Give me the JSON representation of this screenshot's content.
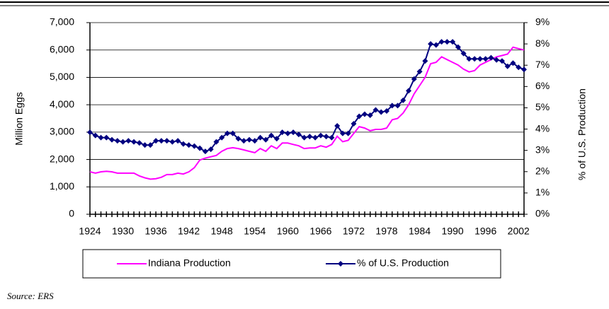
{
  "chart_data": {
    "type": "line",
    "x": [
      1924,
      1925,
      1926,
      1927,
      1928,
      1929,
      1930,
      1931,
      1932,
      1933,
      1934,
      1935,
      1936,
      1937,
      1938,
      1939,
      1940,
      1941,
      1942,
      1943,
      1944,
      1945,
      1946,
      1947,
      1948,
      1949,
      1950,
      1951,
      1952,
      1953,
      1954,
      1955,
      1956,
      1957,
      1958,
      1959,
      1960,
      1961,
      1962,
      1963,
      1964,
      1965,
      1966,
      1967,
      1968,
      1969,
      1970,
      1971,
      1972,
      1973,
      1974,
      1975,
      1976,
      1977,
      1978,
      1979,
      1980,
      1981,
      1982,
      1983,
      1984,
      1985,
      1986,
      1987,
      1988,
      1989,
      1990,
      1991,
      1992,
      1993,
      1994,
      1995,
      1996,
      1997,
      1998,
      1999,
      2000,
      2001,
      2002,
      2003
    ],
    "xlim": [
      1924,
      2003
    ],
    "xticks": [
      1924,
      1930,
      1936,
      1942,
      1948,
      1954,
      1960,
      1966,
      1972,
      1978,
      1984,
      1990,
      1996,
      2002
    ],
    "ylabel": "Million Eggs",
    "y2label": "% of U.S. Production",
    "ylim": [
      0,
      7000
    ],
    "yticks": [
      0,
      {
        "value": 1000,
        "label": "1,000"
      },
      {
        "value": 2000,
        "label": "2,000"
      },
      {
        "value": 3000,
        "label": "3,000"
      },
      {
        "value": 4000,
        "label": "4,000"
      },
      {
        "value": 5000,
        "label": "5,000"
      },
      {
        "value": 6000,
        "label": "6,000"
      },
      {
        "value": 7000,
        "label": "7,000"
      }
    ],
    "y2lim": [
      0,
      9
    ],
    "y2ticks": [
      {
        "value": 0,
        "label": "0%"
      },
      {
        "value": 1,
        "label": "1%"
      },
      {
        "value": 2,
        "label": "2%"
      },
      {
        "value": 3,
        "label": "3%"
      },
      {
        "value": 4,
        "label": "4%"
      },
      {
        "value": 5,
        "label": "5%"
      },
      {
        "value": 6,
        "label": "6%"
      },
      {
        "value": 7,
        "label": "7%"
      },
      {
        "value": 8,
        "label": "8%"
      },
      {
        "value": 9,
        "label": "9%"
      }
    ],
    "grid": true,
    "series": [
      {
        "name": "Indiana Production",
        "color": "#ff00ff",
        "axis": "y",
        "values": [
          1550,
          1500,
          1550,
          1570,
          1550,
          1500,
          1500,
          1500,
          1500,
          1400,
          1330,
          1280,
          1300,
          1350,
          1450,
          1450,
          1500,
          1470,
          1550,
          1700,
          1980,
          2050,
          2100,
          2150,
          2300,
          2400,
          2430,
          2400,
          2350,
          2300,
          2250,
          2400,
          2300,
          2500,
          2400,
          2600,
          2600,
          2550,
          2500,
          2400,
          2420,
          2420,
          2500,
          2450,
          2550,
          2850,
          2650,
          2700,
          2950,
          3200,
          3150,
          3050,
          3100,
          3100,
          3150,
          3450,
          3500,
          3700,
          4000,
          4400,
          4700,
          5000,
          5500,
          5550,
          5750,
          5650,
          5550,
          5450,
          5300,
          5200,
          5250,
          5450,
          5550,
          5650,
          5750,
          5800,
          5850,
          6100,
          6050,
          6000
        ]
      },
      {
        "name": "% of U.S. Production",
        "color": "#000080",
        "axis": "y2",
        "marker": "diamond",
        "values": [
          3.85,
          3.7,
          3.6,
          3.6,
          3.5,
          3.45,
          3.4,
          3.45,
          3.4,
          3.35,
          3.25,
          3.25,
          3.45,
          3.45,
          3.45,
          3.4,
          3.45,
          3.3,
          3.25,
          3.2,
          3.1,
          2.95,
          3.05,
          3.4,
          3.6,
          3.8,
          3.8,
          3.55,
          3.45,
          3.5,
          3.45,
          3.6,
          3.5,
          3.7,
          3.55,
          3.85,
          3.8,
          3.85,
          3.75,
          3.6,
          3.65,
          3.6,
          3.7,
          3.65,
          3.6,
          4.15,
          3.8,
          3.8,
          4.25,
          4.6,
          4.7,
          4.65,
          4.9,
          4.8,
          4.85,
          5.1,
          5.1,
          5.35,
          5.8,
          6.35,
          6.7,
          7.2,
          8.0,
          7.95,
          8.1,
          8.1,
          8.1,
          7.85,
          7.55,
          7.3,
          7.3,
          7.3,
          7.3,
          7.35,
          7.25,
          7.2,
          6.95,
          7.1,
          6.9,
          6.8
        ]
      }
    ],
    "source": "Source: ERS"
  }
}
